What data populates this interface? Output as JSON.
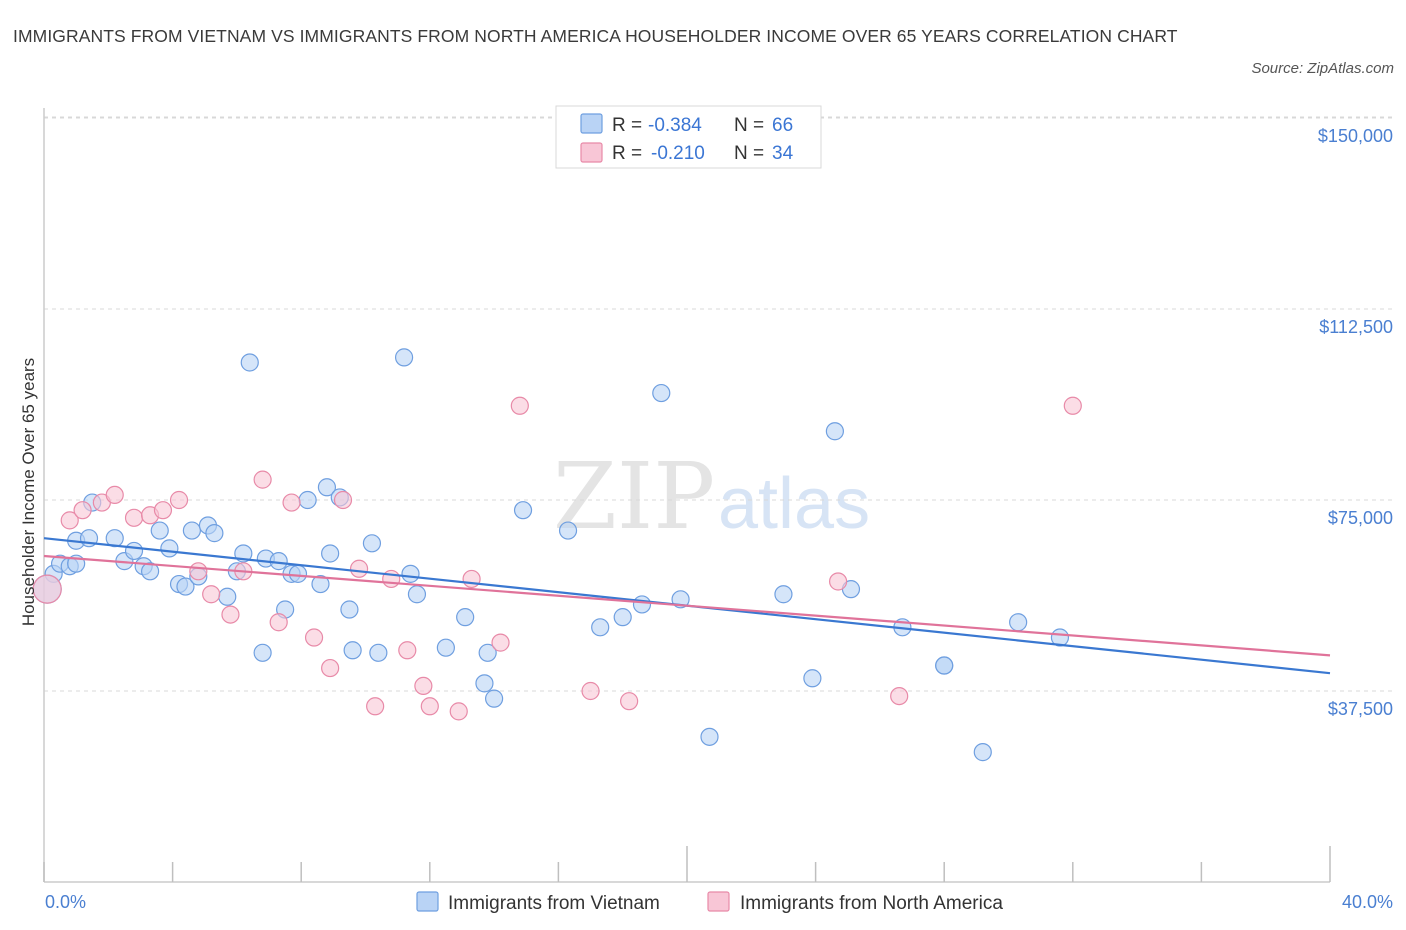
{
  "header": {
    "title": "IMMIGRANTS FROM VIETNAM VS IMMIGRANTS FROM NORTH AMERICA HOUSEHOLDER INCOME OVER 65 YEARS CORRELATION CHART",
    "source": "Source: ZipAtlas.com"
  },
  "watermark": {
    "part1": "ZIP",
    "part2": "atlas"
  },
  "legend_top": {
    "rows": [
      {
        "r_label": "R =",
        "r_value": "-0.384",
        "n_label": "N =",
        "n_value": "66"
      },
      {
        "r_label": "R =",
        "r_value": "-0.210",
        "n_label": "N =",
        "n_value": "34"
      }
    ]
  },
  "legend_bottom": {
    "items": [
      "Immigrants from Vietnam",
      "Immigrants from North America"
    ]
  },
  "colors": {
    "blue_fill": "#b9d3f5",
    "blue_stroke": "#6f9fe0",
    "blue_line": "#3a78d1",
    "pink_fill": "#f8c6d6",
    "pink_stroke": "#e88aa8",
    "pink_line": "#e0739a",
    "tick_label": "#4a7fd1",
    "grid": "#d8d8d8"
  },
  "chart_data": {
    "type": "scatter",
    "title": "IMMIGRANTS FROM VIETNAM VS IMMIGRANTS FROM NORTH AMERICA HOUSEHOLDER INCOME OVER 65 YEARS CORRELATION CHART",
    "xlabel": "",
    "ylabel": "Householder Income Over 65 years",
    "xlim": [
      0,
      40
    ],
    "ylim": [
      0,
      150000
    ],
    "x_tick_labels": [
      "0.0%",
      "40.0%"
    ],
    "y_ticks": [
      37500,
      75000,
      112500,
      150000
    ],
    "y_tick_labels": [
      "$37,500",
      "$75,000",
      "$112,500",
      "$150,000"
    ],
    "grid": true,
    "legend_position": "top-center",
    "series": [
      {
        "name": "Immigrants from Vietnam",
        "trend": {
          "x": [
            0,
            40
          ],
          "y": [
            67500,
            41000
          ]
        },
        "points": [
          [
            0.3,
            60500
          ],
          [
            0.5,
            62500
          ],
          [
            0.8,
            62000
          ],
          [
            1.0,
            67000
          ],
          [
            1.4,
            67500
          ],
          [
            1.5,
            74500
          ],
          [
            2.2,
            67500
          ],
          [
            2.5,
            63000
          ],
          [
            2.8,
            65000
          ],
          [
            3.1,
            62000
          ],
          [
            3.3,
            61000
          ],
          [
            3.6,
            69000
          ],
          [
            3.9,
            65500
          ],
          [
            4.2,
            58500
          ],
          [
            4.4,
            58000
          ],
          [
            4.6,
            69000
          ],
          [
            4.8,
            60000
          ],
          [
            5.1,
            70000
          ],
          [
            5.3,
            68500
          ],
          [
            5.7,
            56000
          ],
          [
            6.0,
            61000
          ],
          [
            6.2,
            64500
          ],
          [
            6.4,
            102000
          ],
          [
            6.8,
            45000
          ],
          [
            6.9,
            63500
          ],
          [
            7.3,
            63000
          ],
          [
            7.5,
            53500
          ],
          [
            7.7,
            60500
          ],
          [
            7.9,
            60500
          ],
          [
            8.2,
            75000
          ],
          [
            8.6,
            58500
          ],
          [
            8.8,
            77500
          ],
          [
            8.9,
            64500
          ],
          [
            9.2,
            75500
          ],
          [
            9.5,
            53500
          ],
          [
            9.6,
            45500
          ],
          [
            10.2,
            66500
          ],
          [
            10.4,
            45000
          ],
          [
            11.4,
            60500
          ],
          [
            11.2,
            103000
          ],
          [
            11.6,
            56500
          ],
          [
            12.5,
            46000
          ],
          [
            13.1,
            52000
          ],
          [
            13.7,
            39000
          ],
          [
            13.8,
            45000
          ],
          [
            14.0,
            36000
          ],
          [
            14.9,
            73000
          ],
          [
            16.3,
            69000
          ],
          [
            17.3,
            50000
          ],
          [
            18.0,
            52000
          ],
          [
            18.6,
            54500
          ],
          [
            19.2,
            96000
          ],
          [
            19.8,
            55500
          ],
          [
            20.7,
            28500
          ],
          [
            23.0,
            56500
          ],
          [
            23.9,
            40000
          ],
          [
            24.6,
            88500
          ],
          [
            25.1,
            57500
          ],
          [
            26.7,
            50000
          ],
          [
            28.0,
            42500
          ],
          [
            28.0,
            42500
          ],
          [
            29.2,
            25500
          ],
          [
            30.3,
            51000
          ],
          [
            31.6,
            48000
          ],
          [
            0.1,
            57500
          ],
          [
            1.0,
            62500
          ]
        ]
      },
      {
        "name": "Immigrants from North America",
        "trend": {
          "x": [
            0,
            40
          ],
          "y": [
            64000,
            44500
          ]
        },
        "points": [
          [
            0.1,
            57500
          ],
          [
            0.8,
            71000
          ],
          [
            1.2,
            73000
          ],
          [
            1.8,
            74500
          ],
          [
            2.2,
            76000
          ],
          [
            2.8,
            71500
          ],
          [
            3.3,
            72000
          ],
          [
            3.7,
            73000
          ],
          [
            4.2,
            75000
          ],
          [
            4.8,
            61000
          ],
          [
            5.2,
            56500
          ],
          [
            5.8,
            52500
          ],
          [
            6.2,
            61000
          ],
          [
            6.8,
            79000
          ],
          [
            7.3,
            51000
          ],
          [
            7.7,
            74500
          ],
          [
            8.4,
            48000
          ],
          [
            8.9,
            42000
          ],
          [
            9.3,
            75000
          ],
          [
            9.8,
            61500
          ],
          [
            10.3,
            34500
          ],
          [
            10.8,
            59500
          ],
          [
            11.3,
            45500
          ],
          [
            11.8,
            38500
          ],
          [
            12.0,
            34500
          ],
          [
            12.9,
            33500
          ],
          [
            13.3,
            59500
          ],
          [
            14.2,
            47000
          ],
          [
            14.8,
            93500
          ],
          [
            17.0,
            37500
          ],
          [
            18.2,
            35500
          ],
          [
            24.7,
            59000
          ],
          [
            26.6,
            36500
          ],
          [
            32.0,
            93500
          ]
        ]
      }
    ]
  }
}
